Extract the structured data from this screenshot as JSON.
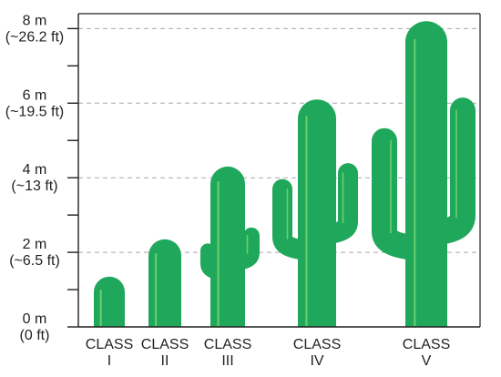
{
  "chart_data": {
    "type": "bar",
    "title": "",
    "xlabel": "",
    "ylabel": "",
    "ylim": [
      0,
      8.4
    ],
    "grid": true,
    "y_ticks": [
      {
        "value": 0,
        "label_m": "0 m",
        "label_ft": "(0 ft)"
      },
      {
        "value": 2,
        "label_m": "2 m",
        "label_ft": "(~6.5 ft)"
      },
      {
        "value": 4,
        "label_m": "4 m",
        "label_ft": "(~13 ft)"
      },
      {
        "value": 6,
        "label_m": "6 m",
        "label_ft": "(~19.5 ft)"
      },
      {
        "value": 8,
        "label_m": "8 m",
        "label_ft": "(~26.2 ft)"
      }
    ],
    "minor_ticks": [
      1,
      3,
      5,
      7
    ],
    "categories": [
      {
        "line1": "CLASS",
        "line2": "I"
      },
      {
        "line1": "CLASS",
        "line2": "II"
      },
      {
        "line1": "CLASS",
        "line2": "III"
      },
      {
        "line1": "CLASS",
        "line2": "IV"
      },
      {
        "line1": "CLASS",
        "line2": "V"
      }
    ],
    "values": [
      1.35,
      2.35,
      4.3,
      6.1,
      8.2
    ],
    "colors": {
      "cactus_fill": "#1fa85b",
      "cactus_highlight": "#6ccf6d",
      "cactus_shadow": "#12853f",
      "axis": "#231f20",
      "grid": "#a7a9ac"
    }
  }
}
